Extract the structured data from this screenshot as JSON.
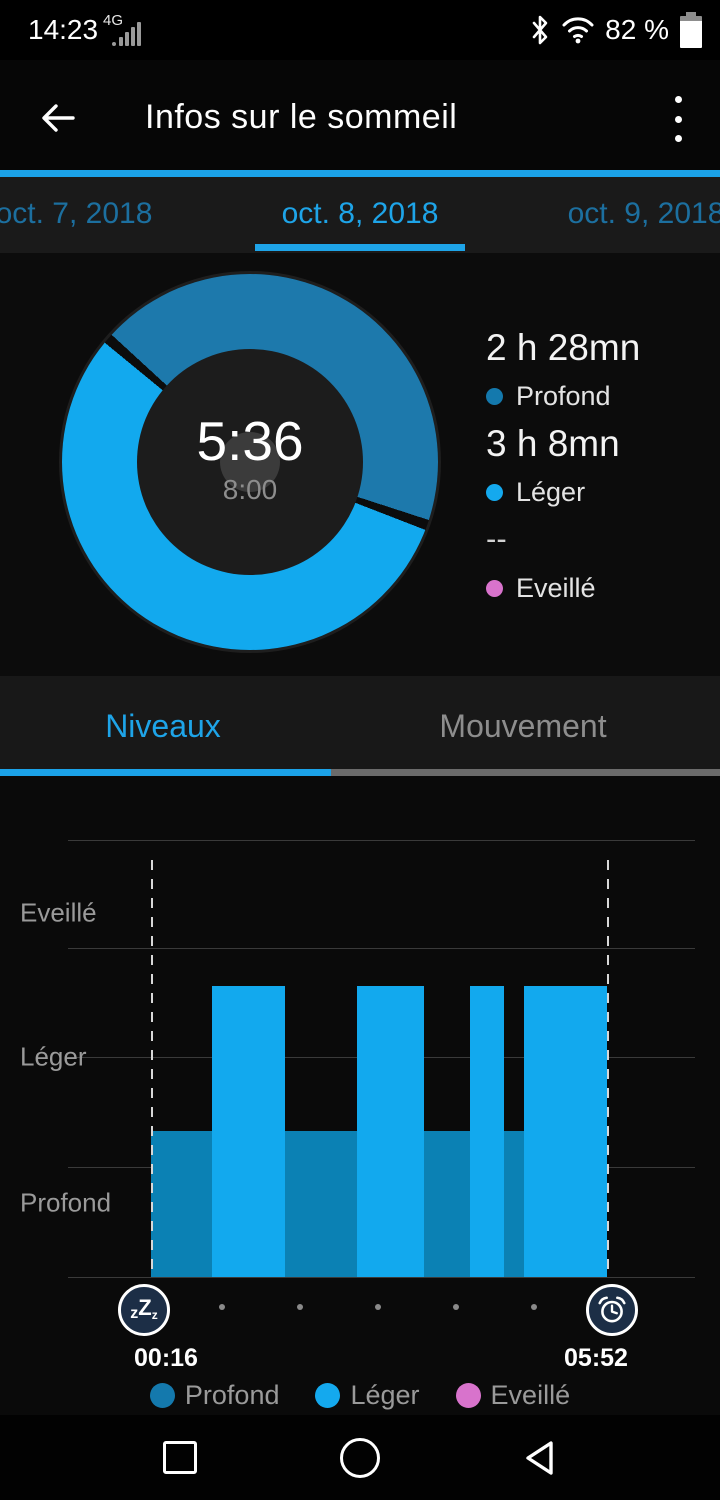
{
  "status_bar": {
    "time": "14:23",
    "network_badge": "4G",
    "battery_text": "82 %"
  },
  "header": {
    "title": "Infos sur le sommeil"
  },
  "date_tabs": [
    {
      "label": "oct. 7, 2018",
      "selected": false
    },
    {
      "label": "oct. 8, 2018",
      "selected": true
    },
    {
      "label": "oct. 9, 2018",
      "selected": false
    }
  ],
  "summary": {
    "sleep_duration": "5:36",
    "sleep_goal": "8:00",
    "stats": [
      {
        "value": "2 h 28mn",
        "label": "Profond",
        "color": "#1479ad"
      },
      {
        "value": "3 h 8mn",
        "label": "Léger",
        "color": "#14a9ee"
      },
      {
        "value": "--",
        "label": "Eveillé",
        "color": "#d873cc"
      }
    ],
    "donut": {
      "deep_minutes": 148,
      "light_minutes": 188,
      "awake_minutes": 0,
      "start_angle_deg": 311,
      "deep_color": "#1d79ac",
      "light_color": "#12a9ee"
    }
  },
  "section_tabs": [
    {
      "label": "Niveaux",
      "selected": true
    },
    {
      "label": "Mouvement",
      "selected": false
    }
  ],
  "chart_data": {
    "type": "area",
    "levels": [
      "Eveillé",
      "Léger",
      "Profond"
    ],
    "x_start": "00:16",
    "x_end": "05:52",
    "segments": [
      {
        "start": "00:16",
        "end": "01:01",
        "level": "Profond"
      },
      {
        "start": "01:01",
        "end": "01:55",
        "level": "Léger"
      },
      {
        "start": "01:55",
        "end": "02:48",
        "level": "Profond"
      },
      {
        "start": "02:48",
        "end": "03:37",
        "level": "Léger"
      },
      {
        "start": "03:37",
        "end": "04:11",
        "level": "Profond"
      },
      {
        "start": "04:11",
        "end": "04:36",
        "level": "Léger"
      },
      {
        "start": "04:36",
        "end": "04:51",
        "level": "Profond"
      },
      {
        "start": "04:51",
        "end": "05:52",
        "level": "Léger"
      }
    ],
    "level_colors": {
      "Profond": "#0b81b4",
      "Léger": "#12a9ee",
      "Eveillé": "#d873cc"
    },
    "grid": true,
    "legend_position": "bottom"
  },
  "timeline": {
    "start_label": "00:16",
    "end_label": "05:52",
    "dot_count": 5,
    "start_icon": "sleep-zzz-icon",
    "end_icon": "alarm-clock-icon"
  },
  "bottom_legend": [
    {
      "label": "Profond",
      "color": "#1479ad"
    },
    {
      "label": "Léger",
      "color": "#14a9ee"
    },
    {
      "label": "Eveillé",
      "color": "#d873cc"
    }
  ],
  "colors": {
    "accent": "#1ba2e8",
    "tab_inactive": "#1c6f9f",
    "axis_text": "#9a9a9a"
  }
}
